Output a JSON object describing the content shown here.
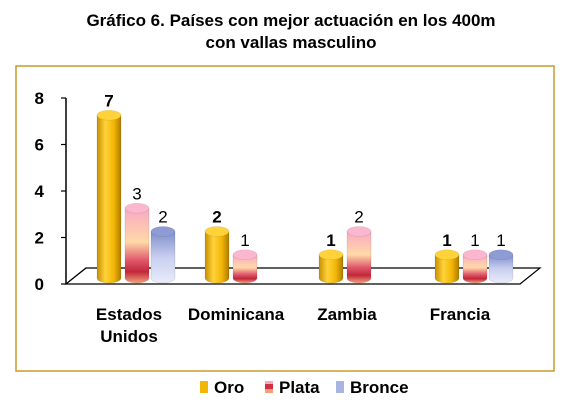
{
  "chart_data": {
    "type": "bar",
    "title_line1": "Gráfico 6. Países con mejor actuación en los 400m",
    "title_line2": "con vallas masculino",
    "categories": [
      {
        "name": "Estados Unidos",
        "lines": [
          "Estados",
          "Unidos"
        ]
      },
      {
        "name": "Dominicana",
        "lines": [
          "Dominicana"
        ]
      },
      {
        "name": "Zambia",
        "lines": [
          "Zambia"
        ]
      },
      {
        "name": "Francia",
        "lines": [
          "Francia"
        ]
      }
    ],
    "series": [
      {
        "name": "Oro",
        "values": [
          7,
          2,
          1,
          1
        ],
        "color": "#f2b705",
        "bold_labels": true
      },
      {
        "name": "Plata",
        "values": [
          3,
          1,
          2,
          1
        ],
        "color": "#f0a070",
        "bold_labels": false
      },
      {
        "name": "Bronce",
        "values": [
          2,
          null,
          null,
          1
        ],
        "color": "#a9b4e0",
        "bold_labels": false
      }
    ],
    "yticks": [
      "0",
      "2",
      "4",
      "6",
      "8"
    ],
    "ylim": [
      0,
      8
    ],
    "legend_position": "bottom",
    "frame_color": "#c89a2c",
    "axis_color": "#000000"
  }
}
